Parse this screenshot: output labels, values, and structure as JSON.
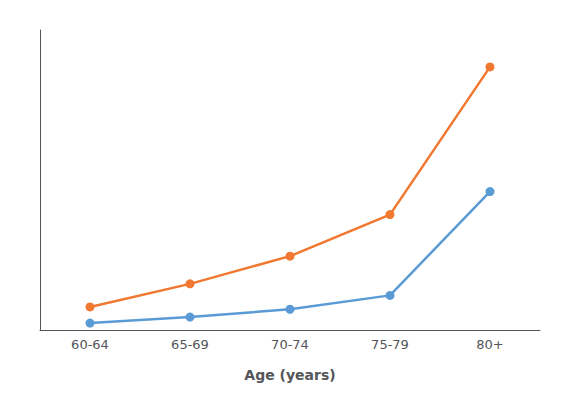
{
  "chart_data": {
    "type": "line",
    "categories": [
      "60-64",
      "65-69",
      "70-74",
      "75-79",
      "80+"
    ],
    "series": [
      {
        "color": "#F07830",
        "values": [
          5.0,
          10.0,
          16.0,
          25.0,
          57.0
        ]
      },
      {
        "color": "#5B9BD5",
        "values": [
          1.5,
          2.8,
          4.5,
          7.5,
          30.0
        ]
      }
    ],
    "xlabel": "Age (years)",
    "ylim": [
      0,
      65
    ],
    "grid": false,
    "tick_labels": "x",
    "marker": "circle"
  }
}
